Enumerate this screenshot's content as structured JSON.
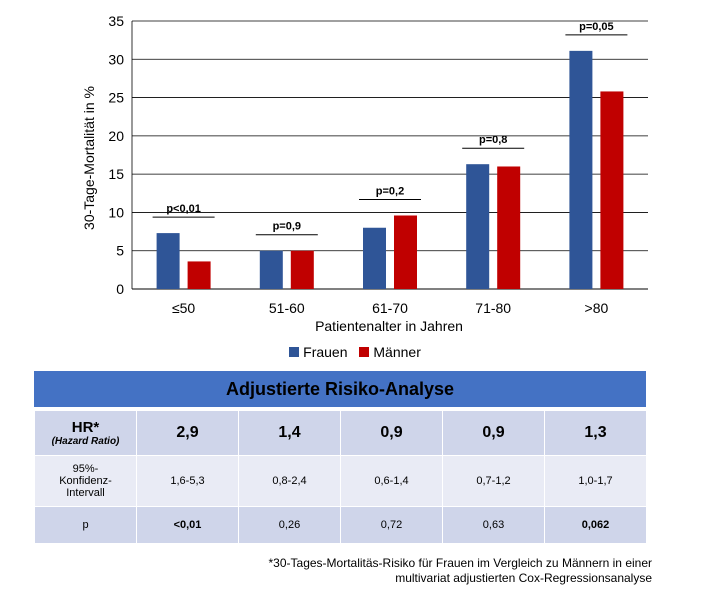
{
  "chart_data": {
    "type": "bar",
    "categories": [
      "≤50",
      "51-60",
      "61-70",
      "71-80",
      ">80"
    ],
    "series": [
      {
        "name": "Frauen",
        "color": "#2f5597",
        "values": [
          7.3,
          5.0,
          8.0,
          16.3,
          31.1
        ]
      },
      {
        "name": "Männer",
        "color": "#c00000",
        "values": [
          3.6,
          5.0,
          9.6,
          16.0,
          25.8
        ]
      }
    ],
    "xlabel": "Patientenalter in Jahren",
    "ylabel": "30-Tage-Mortalität in %",
    "ylim": [
      0,
      35
    ],
    "yticks": [
      0,
      5,
      10,
      15,
      20,
      25,
      30,
      35
    ],
    "grid": true,
    "legend": "bottom",
    "annotations": [
      "p<0,01",
      "p=0,9",
      "p=0,2",
      "p=0,8",
      "p=0,05"
    ]
  },
  "table": {
    "title": "Adjustierte Risiko-Analyse",
    "hr_label": "HR*",
    "hr_sub": "(Hazard Ratio)",
    "hr_values": [
      "2,9",
      "1,4",
      "0,9",
      "0,9",
      "1,3"
    ],
    "ci_label_lines": [
      "95%-",
      "Konfidenz-",
      "Intervall"
    ],
    "ci_values": [
      "1,6-5,3",
      "0,8-2,4",
      "0,6-1,4",
      "0,7-1,2",
      "1,0-1,7"
    ],
    "p_label": "p",
    "p_values": [
      "<0,01",
      "0,26",
      "0,72",
      "0,63",
      "0,062"
    ],
    "p_bold": [
      true,
      false,
      false,
      false,
      true
    ]
  },
  "footnote": {
    "line1": "*30-Tages-Mortalitäs-Risiko für Frauen im Vergleich zu Männern in einer",
    "line2": "multivariat adjustierten Cox-Regressionsanalyse"
  }
}
